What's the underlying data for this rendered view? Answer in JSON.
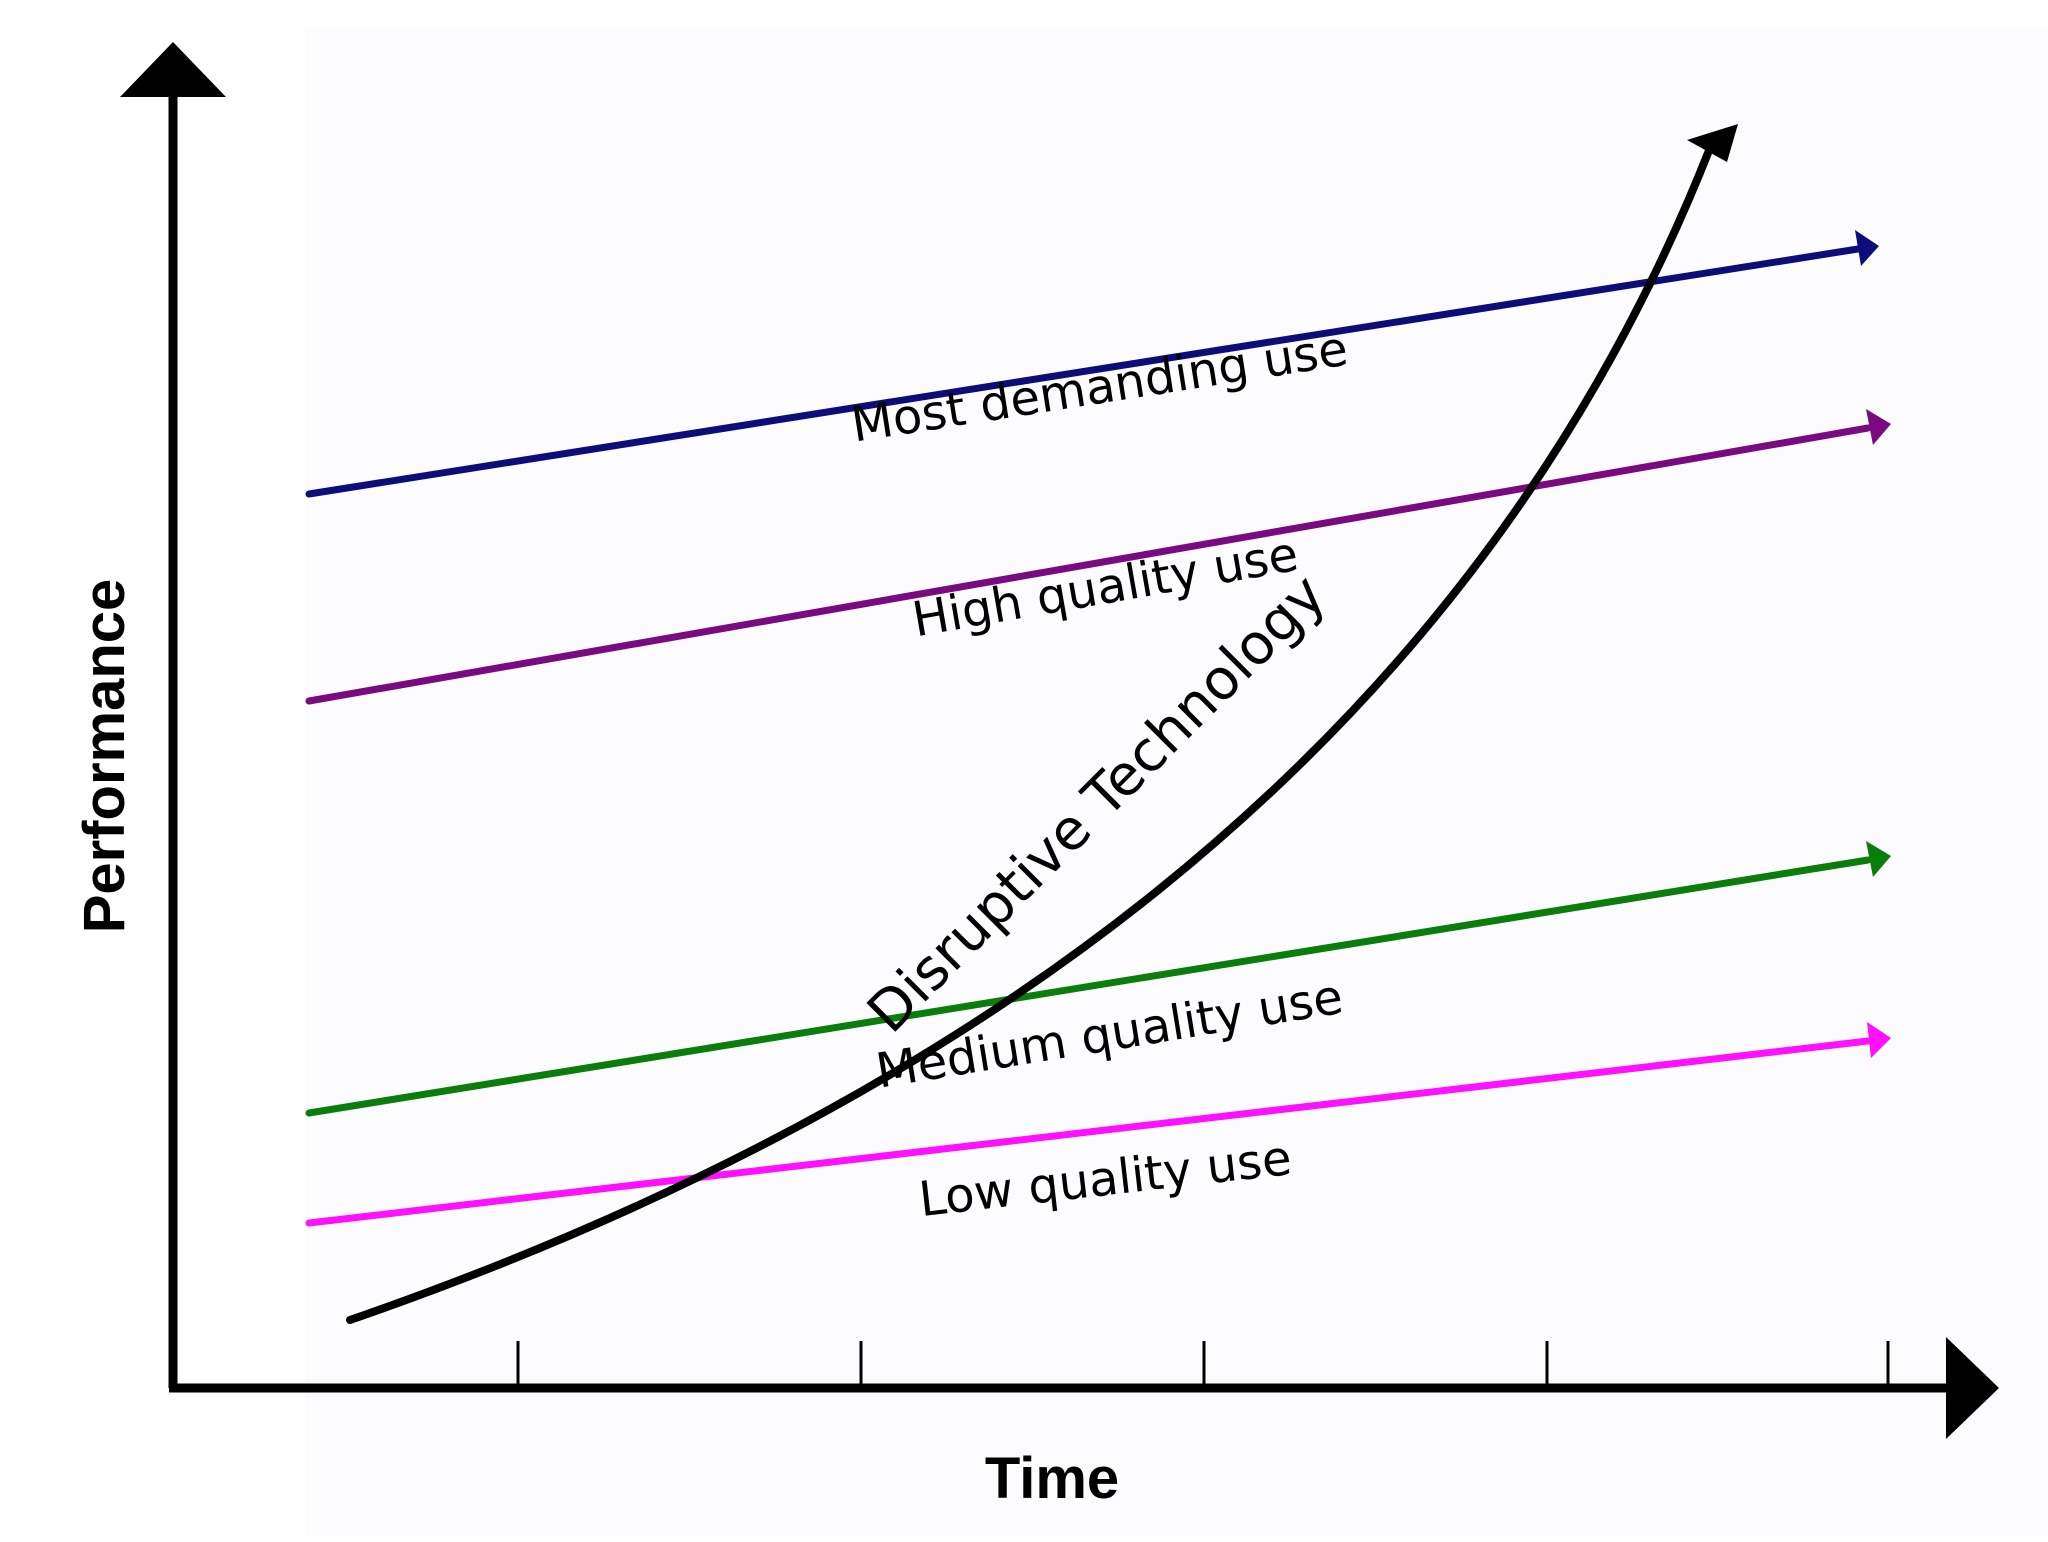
{
  "diagram": {
    "x_axis_label": "Time",
    "y_axis_label": "Performance",
    "x_tick_count": 5,
    "curve": {
      "label": "Disruptive Technology",
      "color": "#000000"
    },
    "demand_lines": [
      {
        "label": "Most demanding use",
        "color": "#0d0d7a"
      },
      {
        "label": "High quality use",
        "color": "#7a0a80"
      },
      {
        "label": "Medium quality use",
        "color": "#0a7d0a"
      },
      {
        "label": "Low quality use",
        "color": "#ff10ff"
      }
    ]
  }
}
